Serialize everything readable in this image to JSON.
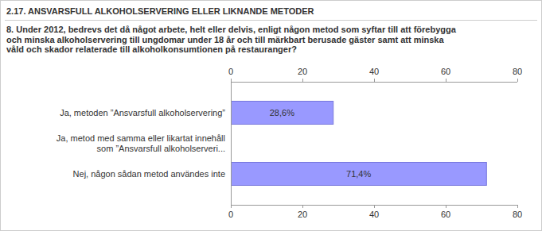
{
  "chart_data": {
    "type": "bar",
    "orientation": "horizontal",
    "title": "2.17. ANSVARSFULL ALKOHOLSERVERING ELLER LIKNANDE METODER",
    "subtitle": "8. Under 2012, bedrevs det då något arbete, helt eller delvis, enligt någon metod som syftar till att förebygga\noch minska alkoholservering till ungdomar under 18 år och till märkbart berusade gäster samt att minska\nvåld och skador relaterade till alkoholkonsumtionen på restauranger?",
    "categories": [
      "Ja, metoden ”Ansvarsfull alkoholservering”",
      "Ja, metod med samma eller likartat innehåll\nsom ”Ansvarsfull alkoholserveri...",
      "Nej, någon sådan metod användes inte"
    ],
    "values": [
      28.6,
      0,
      71.4
    ],
    "value_labels": [
      "28,6%",
      null,
      "71,4%"
    ],
    "data_labels": true,
    "color": "#9999ff",
    "xlim": [
      0,
      80
    ],
    "xticks": [
      0,
      20,
      40,
      60,
      80
    ],
    "grid": false
  }
}
